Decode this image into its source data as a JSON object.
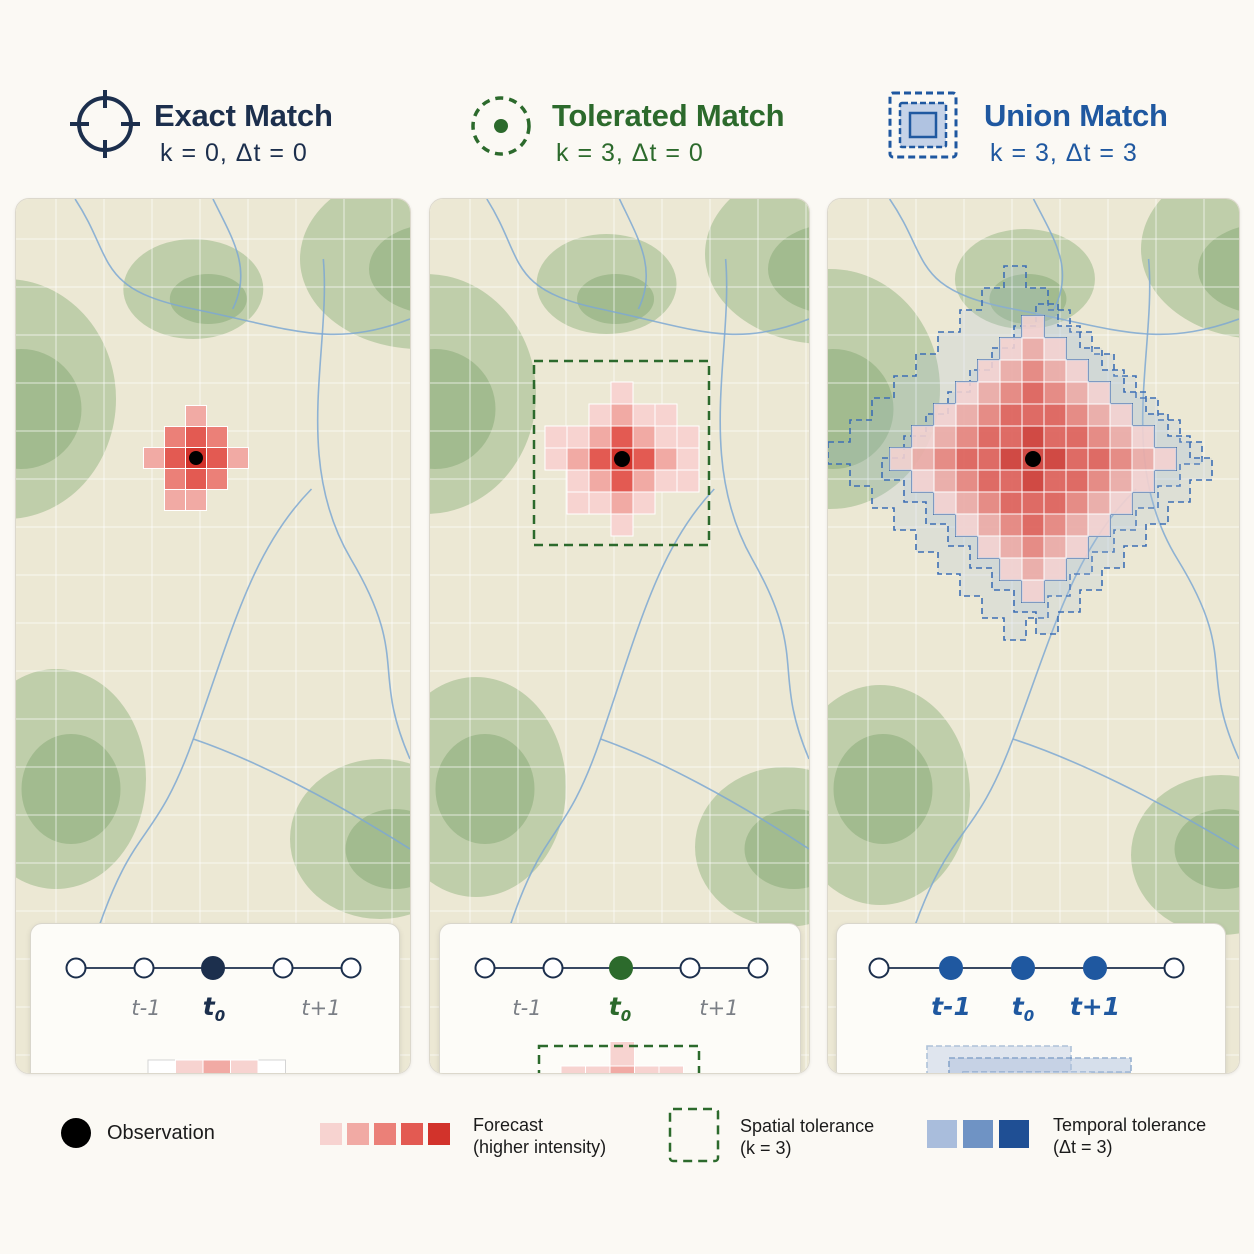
{
  "panels": [
    {
      "id": "exact",
      "title": "Exact Match",
      "params": "k = 0,  Δt = 0",
      "color": "#1c2f4d",
      "timeline": {
        "labels": [
          {
            "base": "t",
            "suffix": "-1",
            "active": false
          },
          {
            "base": "t",
            "suffix": "0",
            "active": true
          },
          {
            "base": "t",
            "suffix": "+1",
            "active": false
          }
        ]
      }
    },
    {
      "id": "tolerated",
      "title": "Tolerated Match",
      "params": "k = 3,  Δt = 0",
      "color": "#2c6a2c",
      "timeline": {
        "labels": [
          {
            "base": "t",
            "suffix": "-1",
            "active": false
          },
          {
            "base": "t",
            "suffix": "0",
            "active": true
          },
          {
            "base": "t",
            "suffix": "+1",
            "active": false
          }
        ]
      }
    },
    {
      "id": "union",
      "title": "Union Match",
      "params": "k = 3,  Δt = 3",
      "color": "#1f58a0",
      "timeline": {
        "labels": [
          {
            "base": "t",
            "suffix": "-1",
            "active": true
          },
          {
            "base": "t",
            "suffix": "0",
            "active": true
          },
          {
            "base": "t",
            "suffix": "+1",
            "active": true
          }
        ]
      }
    }
  ],
  "legend": {
    "observation": "Observation",
    "forecast_line1": "Forecast",
    "forecast_line2": "(higher intensity)",
    "spatial_line1": "Spatial tolerance",
    "spatial_line2": "(k = 3)",
    "temporal_line1": "Temporal tolerance",
    "temporal_line2": "(Δt = 3)"
  },
  "colors": {
    "forecast_ramp": [
      "#f7d3d0",
      "#f1aaa4",
      "#eb8078",
      "#e35a52",
      "#d2332b"
    ],
    "temporal_ramp": [
      "#a9bddc",
      "#6f93c4",
      "#1f4f94"
    ],
    "spatial": "#2c6a2c",
    "observation": "#000000",
    "map_base": "#ece8d4",
    "forest": "#9bb887",
    "river": "#7ea8d2"
  },
  "icons": [
    "crosshair-icon",
    "dashed-circle-dot-icon",
    "nested-squares-icon"
  ]
}
